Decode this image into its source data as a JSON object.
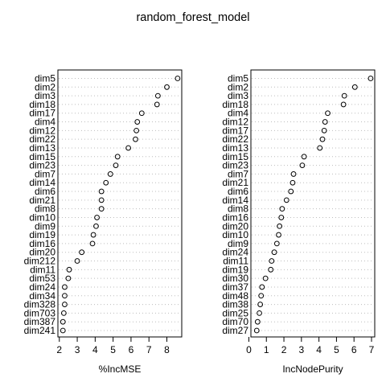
{
  "title": "random_forest_model",
  "chart_data": [
    {
      "type": "dotchart",
      "xlabel": "%IncMSE",
      "xlim": [
        2.1,
        8.65
      ],
      "xticks": [
        2,
        3,
        4,
        5,
        6,
        7,
        8
      ],
      "grid": "dotted horizontal lines per row",
      "categories": [
        "dim5",
        "dim2",
        "dim3",
        "dim18",
        "dim17",
        "dim4",
        "dim12",
        "dim22",
        "dim13",
        "dim15",
        "dim23",
        "dim7",
        "dim14",
        "dim6",
        "dim21",
        "dim8",
        "dim10",
        "dim9",
        "dim19",
        "dim16",
        "dim20",
        "dim212",
        "dim11",
        "dim53",
        "dim24",
        "dim34",
        "dim328",
        "dim703",
        "dim387",
        "dim241"
      ],
      "values": [
        8.6,
        8.0,
        7.5,
        7.45,
        6.6,
        6.35,
        6.3,
        6.25,
        5.85,
        5.25,
        5.15,
        4.85,
        4.6,
        4.35,
        4.35,
        4.35,
        4.1,
        4.05,
        3.9,
        3.85,
        3.25,
        3.0,
        2.55,
        2.5,
        2.3,
        2.3,
        2.3,
        2.25,
        2.2,
        2.2
      ]
    },
    {
      "type": "dotchart",
      "xlabel": "IncNodePurity",
      "xlim": [
        0.3,
        7.0
      ],
      "xticks": [
        0,
        1,
        2,
        3,
        4,
        5,
        6,
        7
      ],
      "grid": "dotted horizontal lines per row",
      "categories": [
        "dim5",
        "dim2",
        "dim3",
        "dim18",
        "dim4",
        "dim12",
        "dim17",
        "dim22",
        "dim13",
        "dim15",
        "dim23",
        "dim7",
        "dim21",
        "dim6",
        "dim14",
        "dim8",
        "dim16",
        "dim20",
        "dim10",
        "dim9",
        "dim24",
        "dim11",
        "dim19",
        "dim30",
        "dim37",
        "dim48",
        "dim38",
        "dim25",
        "dim70",
        "dim27"
      ],
      "values": [
        6.95,
        6.05,
        5.45,
        5.4,
        4.5,
        4.35,
        4.3,
        4.2,
        4.05,
        3.15,
        3.05,
        2.55,
        2.5,
        2.4,
        2.15,
        1.9,
        1.85,
        1.75,
        1.7,
        1.6,
        1.45,
        1.3,
        1.25,
        0.95,
        0.75,
        0.7,
        0.65,
        0.6,
        0.5,
        0.45
      ]
    }
  ]
}
